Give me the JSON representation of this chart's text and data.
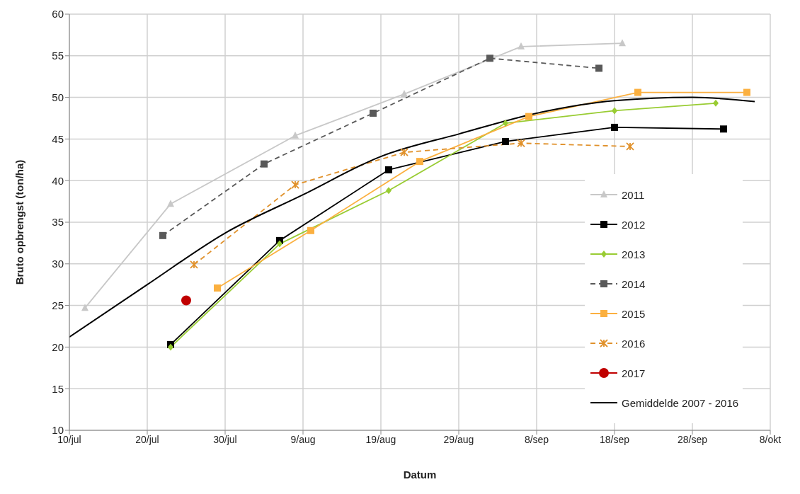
{
  "chart_data": {
    "type": "line",
    "xlabel": "Datum",
    "ylabel": "Bruto opbrengst (ton/ha)",
    "xlim": [
      "--07-10",
      "--10-08"
    ],
    "xticks": [
      {
        "value": "--07-10",
        "label": "10/jul"
      },
      {
        "value": "--07-20",
        "label": "20/jul"
      },
      {
        "value": "--07-30",
        "label": "30/jul"
      },
      {
        "value": "--08-09",
        "label": "9/aug"
      },
      {
        "value": "--08-19",
        "label": "19/aug"
      },
      {
        "value": "--08-29",
        "label": "29/aug"
      },
      {
        "value": "--09-08",
        "label": "8/sep"
      },
      {
        "value": "--09-18",
        "label": "18/sep"
      },
      {
        "value": "--09-28",
        "label": "28/sep"
      },
      {
        "value": "--10-08",
        "label": "8/okt"
      }
    ],
    "ylim": [
      10,
      60
    ],
    "yticks": [
      10,
      15,
      20,
      25,
      30,
      35,
      40,
      45,
      50,
      55,
      60
    ],
    "grid": true,
    "legend": "bottom right",
    "series": [
      {
        "name": "2011",
        "color": "#c8c8c8",
        "marker": "triangle",
        "line_style": "solid",
        "x": [
          "--07-12",
          "--07-23",
          "--08-08",
          "--08-22",
          "--09-06",
          "--09-19"
        ],
        "values": [
          24.7,
          37.2,
          45.4,
          50.4,
          56.1,
          56.5
        ]
      },
      {
        "name": "2012",
        "color": "#000000",
        "marker": "square",
        "line_style": "solid",
        "x": [
          "--07-23",
          "--08-06",
          "--08-20",
          "--09-04",
          "--09-18",
          "--10-02"
        ],
        "values": [
          20.3,
          32.8,
          41.3,
          44.7,
          46.4,
          46.2
        ]
      },
      {
        "name": "2013",
        "color": "#99cc33",
        "marker": "diamond",
        "line_style": "solid",
        "x": [
          "--07-23",
          "--08-06",
          "--08-20",
          "--09-04",
          "--09-18",
          "--10-01"
        ],
        "values": [
          20.0,
          32.4,
          38.8,
          46.9,
          48.4,
          49.3
        ]
      },
      {
        "name": "2014",
        "color": "#595959",
        "marker": "square",
        "line_style": "dashed",
        "x": [
          "--07-22",
          "--08-04",
          "--08-18",
          "--09-02",
          "--09-16"
        ],
        "values": [
          33.4,
          42.0,
          48.1,
          54.7,
          53.5
        ]
      },
      {
        "name": "2015",
        "color": "#fbb040",
        "marker": "square",
        "line_style": "solid",
        "x": [
          "--07-29",
          "--08-10",
          "--08-24",
          "--09-07",
          "--09-21",
          "--10-05"
        ],
        "values": [
          27.1,
          34.0,
          42.3,
          47.7,
          50.6,
          50.6
        ]
      },
      {
        "name": "2016",
        "color": "#e0912b",
        "marker": "cross",
        "line_style": "dashed",
        "x": [
          "--07-26",
          "--08-08",
          "--08-22",
          "--09-06",
          "--09-20"
        ],
        "values": [
          29.9,
          39.5,
          43.4,
          44.5,
          44.1
        ]
      },
      {
        "name": "2017",
        "color": "#c00000",
        "marker": "circle",
        "line_style": "solid",
        "x": [
          "--07-25"
        ],
        "values": [
          25.6
        ]
      },
      {
        "name": "Gemiddelde 2007 - 2016",
        "color": "#000000",
        "marker": "none",
        "line_style": "solid",
        "x": [
          "--07-10",
          "--07-20",
          "--07-30",
          "--08-09",
          "--08-19",
          "--08-29",
          "--09-08",
          "--09-18",
          "--09-28",
          "--10-06"
        ],
        "values": [
          21.2,
          27.5,
          33.7,
          38.3,
          42.9,
          45.6,
          48.1,
          49.6,
          50.0,
          49.5
        ]
      }
    ]
  }
}
